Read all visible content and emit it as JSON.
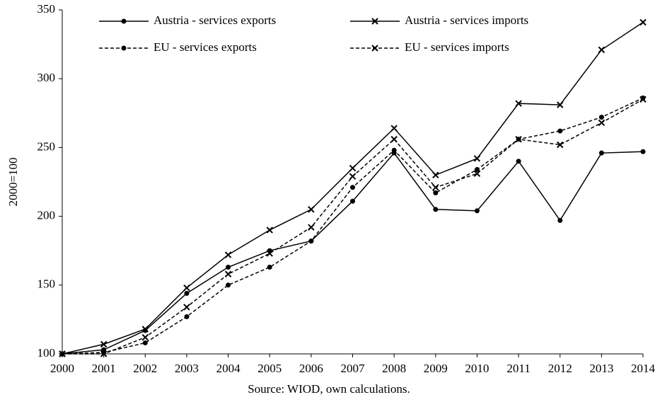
{
  "chart_data": {
    "type": "line",
    "y_label": "2000=100",
    "source": "Source:  WIOD, own calculations.",
    "categories": [
      "2000",
      "2001",
      "2002",
      "2003",
      "2004",
      "2005",
      "2006",
      "2007",
      "2008",
      "2009",
      "2010",
      "2011",
      "2012",
      "2013",
      "2014"
    ],
    "series": [
      {
        "name": "Austria - services exports",
        "color": "#000000",
        "line_style": "solid",
        "marker": "circle",
        "values": [
          100,
          103,
          117,
          144,
          163,
          175,
          182,
          211,
          246,
          205,
          204,
          240,
          197,
          246,
          247
        ]
      },
      {
        "name": "Austria - services imports",
        "color": "#000000",
        "line_style": "solid",
        "marker": "x",
        "values": [
          100,
          107,
          118,
          148,
          172,
          190,
          205,
          235,
          264,
          230,
          242,
          282,
          281,
          321,
          341
        ]
      },
      {
        "name": "EU - services exports",
        "color": "#000000",
        "line_style": "dashed",
        "marker": "circle",
        "values": [
          100,
          101,
          108,
          127,
          150,
          163,
          182,
          221,
          248,
          217,
          234,
          256,
          262,
          272,
          286
        ]
      },
      {
        "name": "EU - services imports",
        "color": "#000000",
        "line_style": "dashed",
        "marker": "x",
        "values": [
          100,
          100,
          112,
          134,
          158,
          173,
          192,
          229,
          256,
          221,
          231,
          256,
          252,
          268,
          285
        ]
      }
    ],
    "ylim": [
      100,
      350
    ],
    "yticks": [
      100,
      150,
      200,
      250,
      300,
      350
    ],
    "grid": false
  }
}
